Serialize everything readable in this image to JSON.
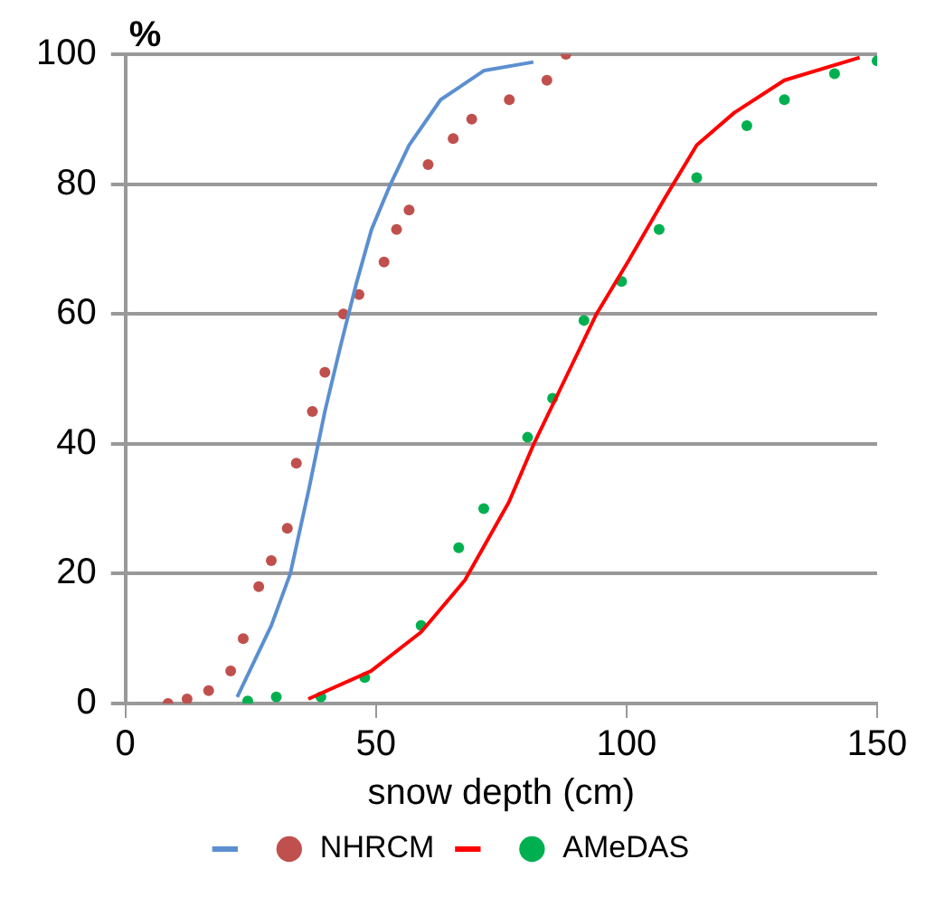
{
  "chart_data": {
    "type": "scatter",
    "xlabel": "snow depth (cm)",
    "ylabel": "%",
    "xlim": [
      0,
      150
    ],
    "xticks": [
      0,
      50,
      100,
      150
    ],
    "ylim": [
      0,
      100
    ],
    "yticks": [
      0,
      20,
      40,
      60,
      80,
      100
    ],
    "grid": "y",
    "legend": "bottom",
    "series": [
      {
        "type": "line",
        "color": "#5b8fd0",
        "marker": "none",
        "x": [
          22.3,
          29.1,
          32.9,
          36.6,
          39.8,
          42.9,
          46,
          49.1,
          52.9,
          56.6,
          62.9,
          71.6,
          81.4
        ],
        "values": [
          1,
          12,
          20,
          33,
          45,
          55,
          64.5,
          73,
          80,
          86,
          93,
          97.5,
          98.8
        ]
      },
      {
        "type": "scatter",
        "name": "NHRCM",
        "color": "#c0504d",
        "marker": "circle",
        "x": [
          8.5,
          12.3,
          16.6,
          21,
          23.5,
          26.6,
          29.1,
          32.3,
          34.1,
          37.3,
          39.8,
          43.5,
          46.6,
          51.6,
          54.1,
          56.6,
          60.4,
          65.4,
          69.1,
          76.6,
          84.1,
          87.9
        ],
        "values": [
          0,
          0.7,
          2,
          5,
          10,
          18,
          22,
          27,
          37,
          45,
          51,
          60,
          63,
          68,
          73,
          76,
          83,
          87,
          90,
          93,
          96,
          100
        ]
      },
      {
        "type": "line",
        "color": "#ff0000",
        "marker": "none",
        "x": [
          36.5,
          49,
          59,
          67.75,
          76.5,
          81.5,
          87.75,
          94,
          100.25,
          107.75,
          114,
          121.5,
          131.5,
          146.5
        ],
        "values": [
          0.7,
          5,
          11,
          19,
          31,
          40,
          50,
          60,
          68,
          78,
          86,
          91,
          96,
          99.5
        ]
      },
      {
        "type": "scatter",
        "name": "AMeDAS",
        "color": "#00b050",
        "marker": "circle",
        "x": [
          24.4,
          30.1,
          39,
          47.75,
          59,
          66.5,
          71.5,
          80.25,
          85.25,
          91.5,
          99,
          106.5,
          114,
          124,
          131.5,
          141.5,
          150
        ],
        "values": [
          0.4,
          1,
          1,
          4,
          12,
          24,
          30,
          41,
          47,
          59,
          65,
          73,
          81,
          89,
          93,
          97,
          99
        ]
      }
    ]
  }
}
